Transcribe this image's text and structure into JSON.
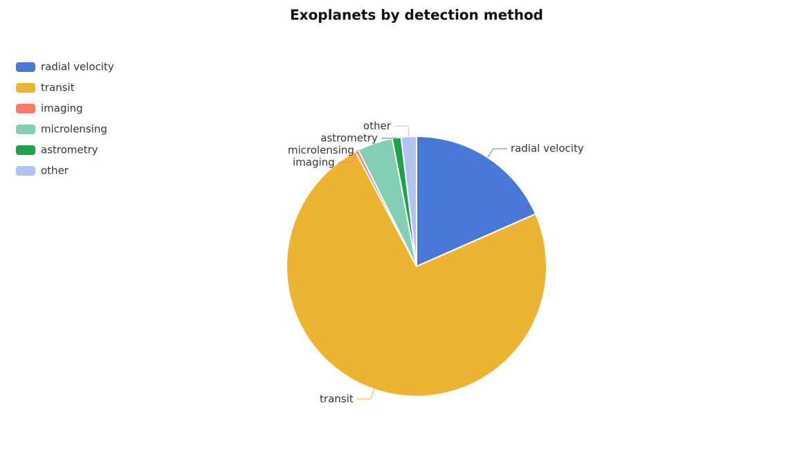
{
  "chart_data": {
    "type": "pie",
    "title": "Exoplanets by detection method",
    "categories": [
      "radial velocity",
      "transit",
      "imaging",
      "microlensing",
      "astrometry",
      "other"
    ],
    "values": [
      18.4,
      73.8,
      0.4,
      4.4,
      1.1,
      1.9
    ],
    "colors": [
      "#4a78d8",
      "#ecb431",
      "#ff7b66",
      "#84ceb4",
      "#22a14b",
      "#b2c3f0"
    ],
    "legend": "top-left"
  }
}
